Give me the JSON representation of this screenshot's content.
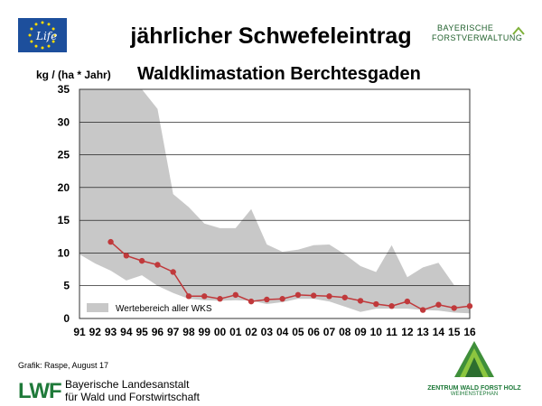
{
  "header": {
    "title": "jährlicher Schwefeleintrag",
    "eu_logo_text": "Life",
    "bf_logo_line1": "BAYERISCHE",
    "bf_logo_line2": "FORSTVERWALTUNG"
  },
  "chart_data": {
    "type": "line",
    "title": "Waldklimastation Berchtesgaden",
    "ylabel": "kg / (ha * Jahr)",
    "xlabel": "",
    "ylim": [
      0,
      35
    ],
    "yticks": [
      0,
      5,
      10,
      15,
      20,
      25,
      30,
      35
    ],
    "grid": true,
    "legend_position": "bottom-left",
    "categories": [
      "91",
      "92",
      "93",
      "94",
      "95",
      "96",
      "97",
      "98",
      "99",
      "00",
      "01",
      "02",
      "03",
      "04",
      "05",
      "06",
      "07",
      "08",
      "09",
      "10",
      "11",
      "12",
      "13",
      "14",
      "15",
      "16"
    ],
    "band": {
      "name": "Wertebereich aller WKS",
      "upper": [
        35,
        35,
        35,
        35,
        35,
        32,
        19,
        17,
        14.5,
        13.8,
        13.8,
        16.7,
        11.3,
        10.2,
        10.5,
        11.2,
        11.3,
        9.8,
        8,
        7.1,
        11.2,
        6.3,
        7.8,
        8.5,
        5.1,
        5
      ],
      "lower": [
        9.8,
        8.4,
        7.3,
        5.8,
        6.6,
        5,
        3.9,
        3,
        2.8,
        2.7,
        2.8,
        2.7,
        2.2,
        2.5,
        3,
        3,
        2.6,
        1.8,
        1,
        1.5,
        1.5,
        1.5,
        1.3,
        1.2,
        0.9,
        0.8
      ],
      "color": "#c8c8c8"
    },
    "series": [
      {
        "name": "",
        "color": "#c0393b",
        "values": [
          null,
          null,
          11.7,
          9.6,
          8.8,
          8.2,
          7.1,
          3.4,
          3.4,
          3,
          3.6,
          2.6,
          2.9,
          3,
          3.6,
          3.5,
          3.4,
          3.2,
          2.7,
          2.2,
          1.9,
          2.6,
          1.3,
          2.1,
          1.6,
          1.9
        ]
      }
    ],
    "legend_label": "Wertebereich aller WKS"
  },
  "footer": {
    "credit": "Grafik: Raspe, August 17",
    "lwf_mark": "LWF",
    "lwf_name_line1": "Bayerische Landesanstalt",
    "lwf_name_line2": "für Wald und Forstwirtschaft",
    "zentrum_line1": "ZENTRUM WALD FORST HOLZ",
    "zentrum_line2": "WEIHENSTEPHAN"
  },
  "colors": {
    "plot_border": "#333333",
    "grid": "#000000",
    "band": "#c8c8c8",
    "series": "#c0393b",
    "logo_green": "#1f7a3a",
    "eu_blue": "#1d4f9c",
    "eu_star": "#ffdd00"
  }
}
